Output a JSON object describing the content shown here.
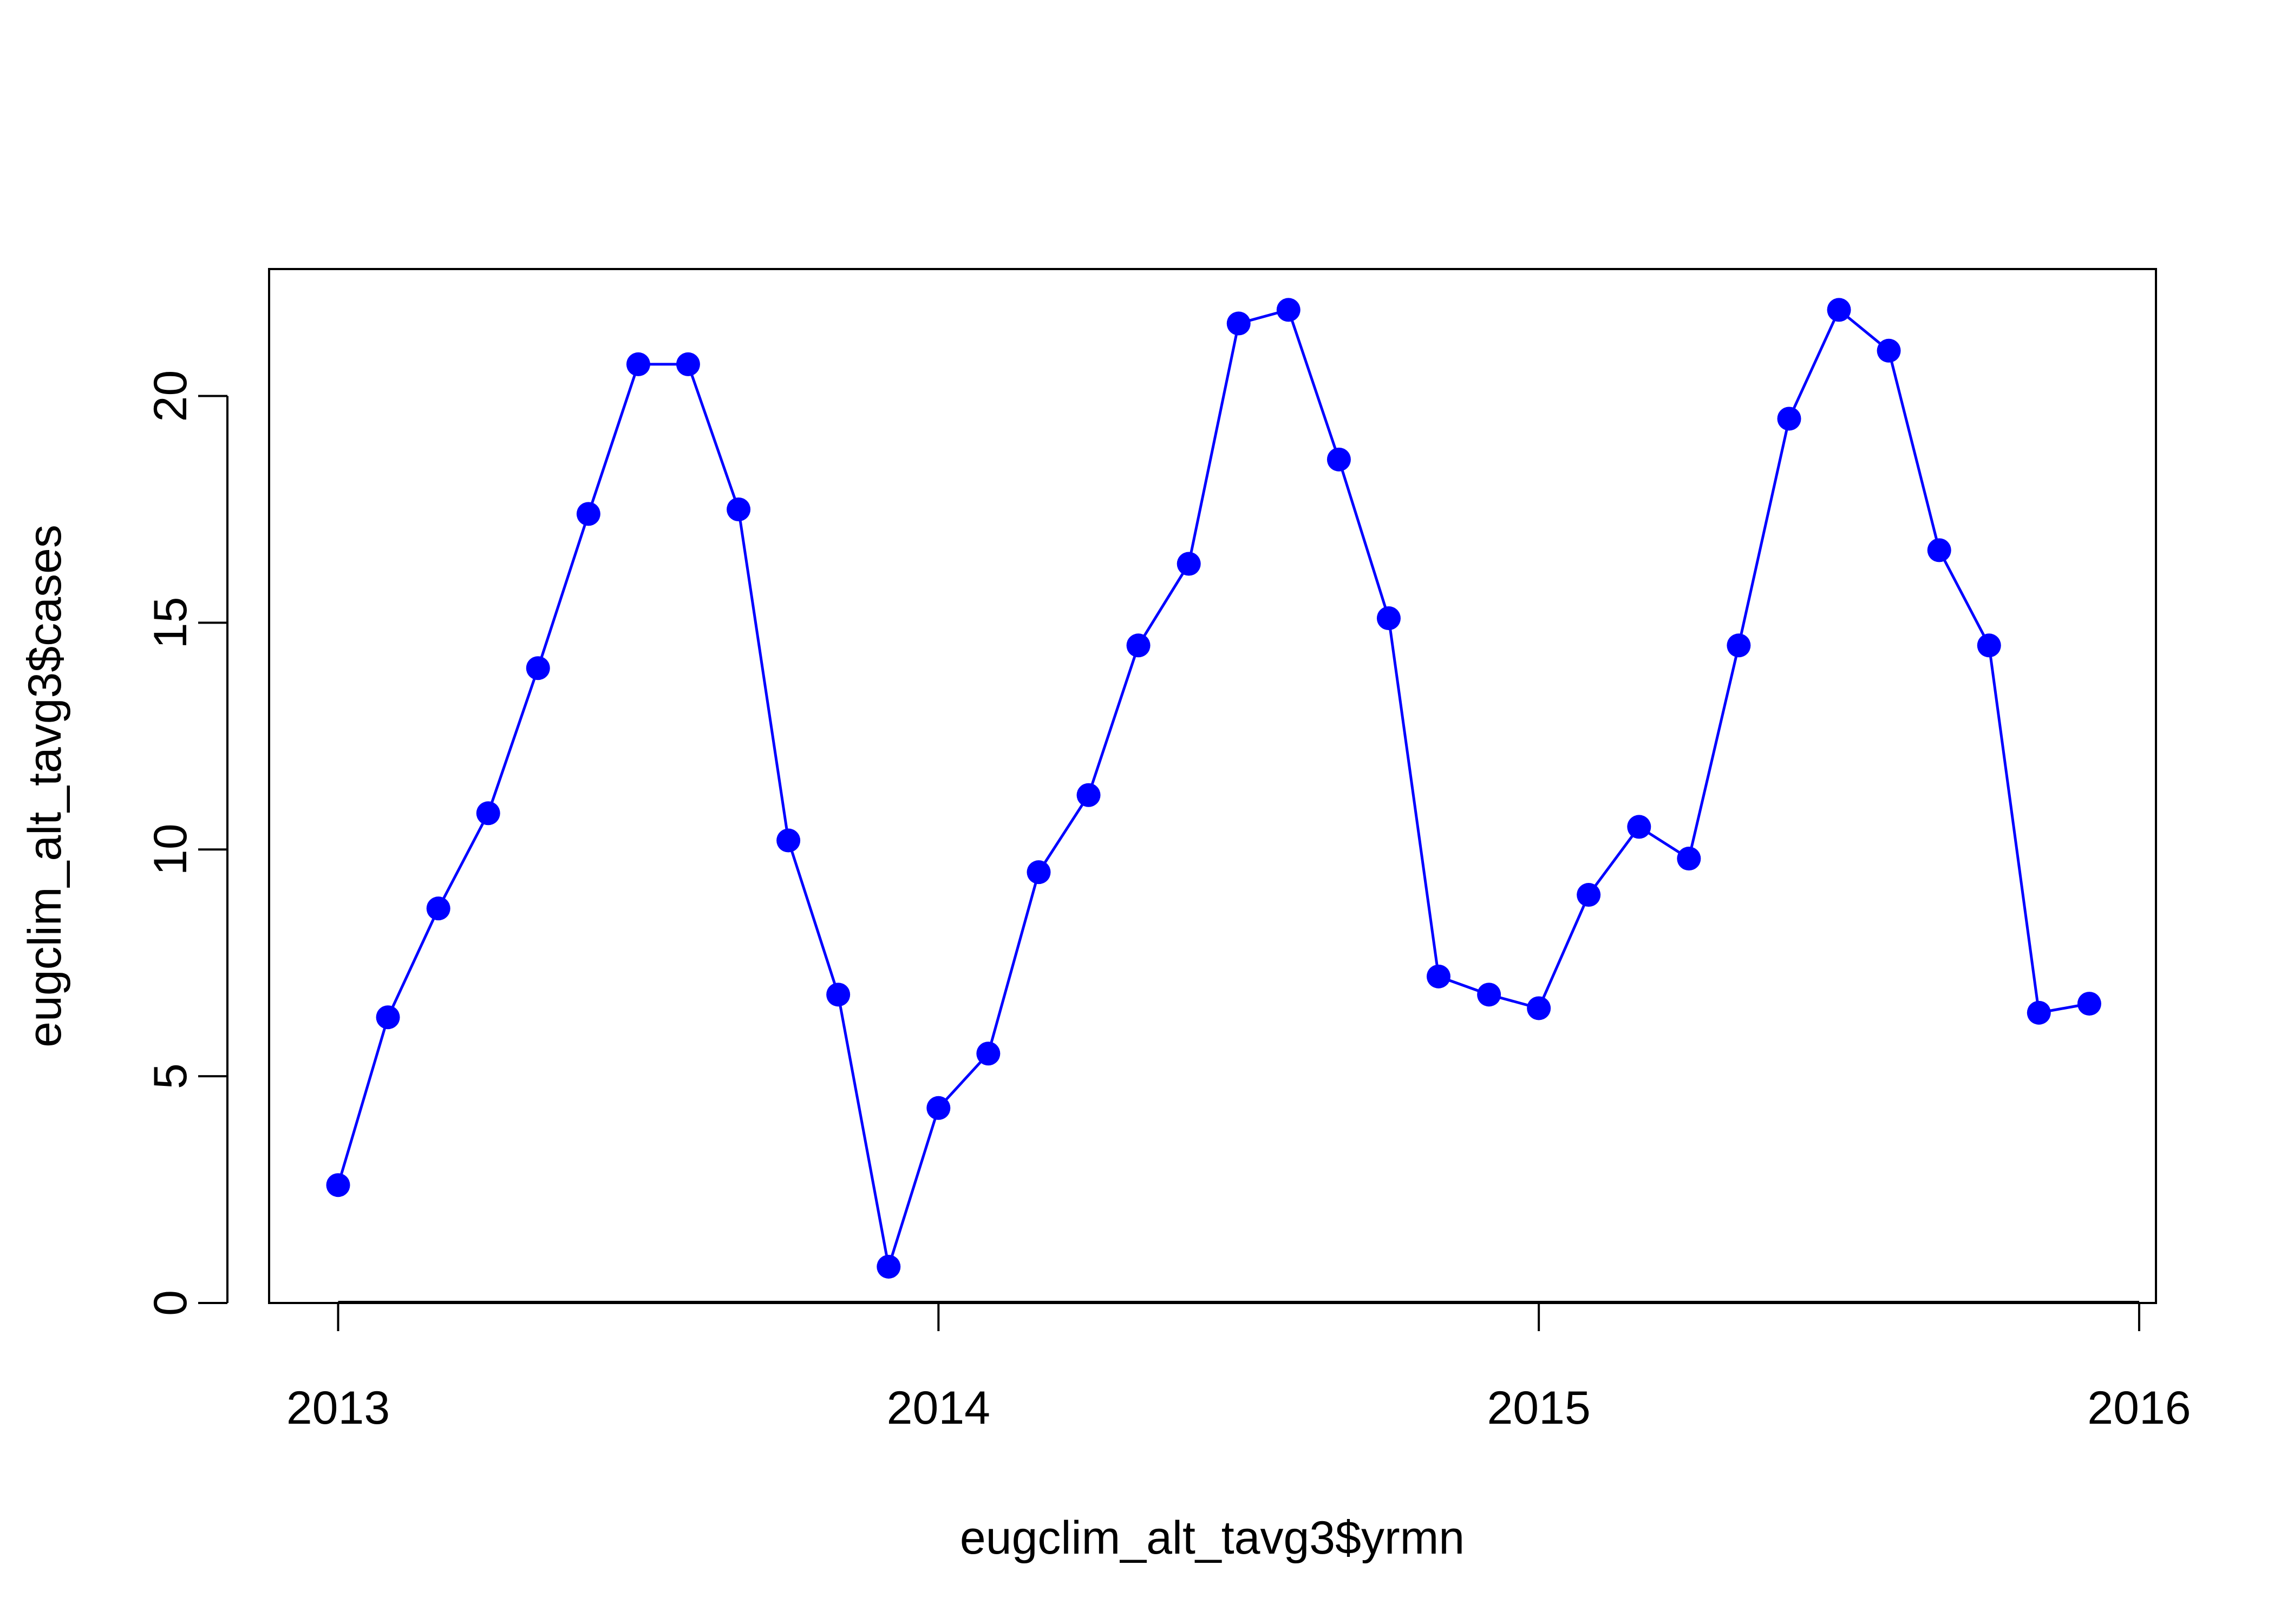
{
  "chart_data": {
    "type": "line",
    "title": "",
    "xlabel": "eugclim_alt_tavg3$yrmn",
    "ylabel": "eugclim_alt_tavg3$cases",
    "xlim": [
      2012.885,
      2016.028
    ],
    "ylim": [
      0,
      22.8
    ],
    "x_ticks": [
      2013,
      2014,
      2015,
      2016
    ],
    "x_tick_labels": [
      "2013",
      "2014",
      "2015",
      "2016"
    ],
    "y_ticks": [
      0,
      5,
      10,
      15,
      20
    ],
    "y_tick_labels": [
      "0",
      "5",
      "10",
      "15",
      "20"
    ],
    "grid": false,
    "legend": null,
    "colors": {
      "series": "#0000ff",
      "axes": "#000000",
      "background": "#ffffff"
    },
    "series": [
      {
        "marker": "filled-circle",
        "x": [
          2013.0,
          2013.083,
          2013.167,
          2013.25,
          2013.333,
          2013.417,
          2013.5,
          2013.583,
          2013.667,
          2013.75,
          2013.833,
          2013.917,
          2014.0,
          2014.083,
          2014.167,
          2014.25,
          2014.333,
          2014.417,
          2014.5,
          2014.583,
          2014.667,
          2014.75,
          2014.833,
          2014.917,
          2015.0,
          2015.083,
          2015.167,
          2015.25,
          2015.333,
          2015.417,
          2015.5,
          2015.583,
          2015.667,
          2015.75,
          2015.833,
          2015.917
        ],
        "values": [
          2.6,
          6.3,
          8.7,
          10.8,
          14.0,
          17.4,
          20.7,
          20.7,
          17.5,
          10.2,
          6.8,
          0.8,
          4.3,
          5.5,
          9.5,
          11.2,
          14.5,
          16.3,
          21.6,
          21.9,
          18.6,
          15.1,
          7.2,
          6.8,
          6.5,
          9.0,
          10.5,
          9.8,
          14.5,
          19.5,
          21.9,
          21.0,
          16.6,
          14.5,
          6.4,
          6.6
        ]
      }
    ]
  }
}
